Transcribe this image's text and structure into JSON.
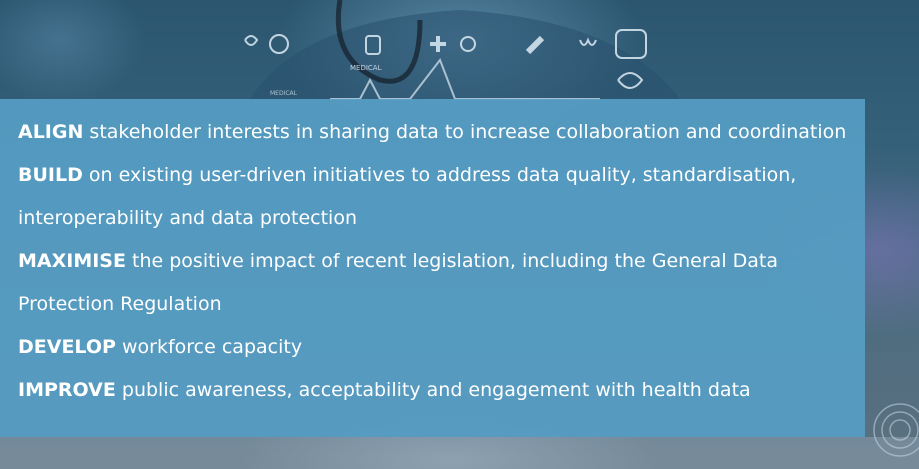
{
  "items": [
    {
      "keyword": "ALIGN",
      "text": " stakeholder interests in sharing data to increase collaboration and coordination"
    },
    {
      "keyword": "BUILD",
      "text": " on existing user-driven initiatives to address data quality, standardisation, interoperability and data protection"
    },
    {
      "keyword": "MAXIMISE",
      "text": " the positive impact of recent legislation, including the General Data Protection Regulation"
    },
    {
      "keyword": "DEVELOP",
      "text": " workforce capacity"
    },
    {
      "keyword": "IMPROVE",
      "text": " public awareness, acceptability and engagement with health data"
    }
  ],
  "background": {
    "overlay_labels": [
      "MEDICAL",
      "MEDICAL"
    ]
  },
  "colors": {
    "panel": "#569dc4",
    "text": "#ffffff"
  }
}
